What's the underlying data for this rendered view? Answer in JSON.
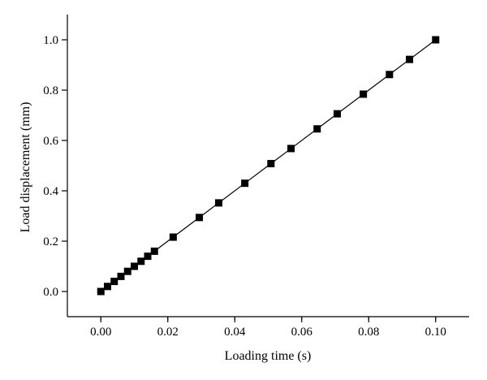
{
  "chart_data": {
    "type": "scatter",
    "title": "",
    "xlabel": "Loading time (s)",
    "ylabel": "Load displacement (mm)",
    "xlim": [
      -0.01,
      0.11
    ],
    "ylim": [
      -0.1,
      1.1
    ],
    "x_ticks": [
      0.0,
      0.02,
      0.04,
      0.06,
      0.08,
      0.1
    ],
    "x_tick_labels": [
      "0.00",
      "0.02",
      "0.04",
      "0.06",
      "0.08",
      "0.10"
    ],
    "y_ticks": [
      0.0,
      0.2,
      0.4,
      0.6,
      0.8,
      1.0
    ],
    "y_tick_labels": [
      "0.0",
      "0.2",
      "0.4",
      "0.6",
      "0.8",
      "1.0"
    ],
    "grid": false,
    "legend": "none",
    "marker": "square",
    "connect_points": true,
    "color": "#000000",
    "series": [
      {
        "x": [
          0.0,
          0.002,
          0.004,
          0.006,
          0.008,
          0.01,
          0.012,
          0.014,
          0.016,
          0.0216,
          0.0294,
          0.0352,
          0.043,
          0.0508,
          0.0568,
          0.0646,
          0.0706,
          0.0784,
          0.0862,
          0.0922,
          0.1
        ],
        "y": [
          0.0,
          0.02,
          0.04,
          0.06,
          0.08,
          0.1,
          0.12,
          0.14,
          0.16,
          0.216,
          0.294,
          0.352,
          0.43,
          0.508,
          0.568,
          0.646,
          0.706,
          0.784,
          0.862,
          0.922,
          1.0
        ]
      }
    ]
  }
}
